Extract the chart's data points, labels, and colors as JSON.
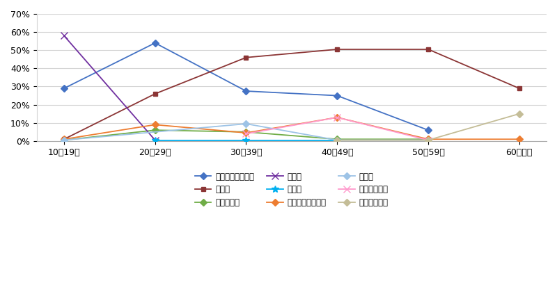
{
  "categories": [
    "10～19歳",
    "20～29歳",
    "30～39歳",
    "40～49歳",
    "50～59歳",
    "60歳以上"
  ],
  "series": [
    {
      "label": "就職・転職・転業",
      "values": [
        0.29,
        0.54,
        0.275,
        0.25,
        0.06,
        null
      ],
      "color": "#4472C4",
      "marker": "D",
      "markersize": 5
    },
    {
      "label": "転　勤",
      "values": [
        0.01,
        0.26,
        0.46,
        0.505,
        0.505,
        0.29
      ],
      "color": "#8B3535",
      "marker": "s",
      "markersize": 5
    },
    {
      "label": "退職・廃業",
      "values": [
        0.005,
        0.06,
        0.05,
        0.01,
        0.01,
        null
      ],
      "color": "#70AD47",
      "marker": "D",
      "markersize": 5
    },
    {
      "label": "就　学",
      "values": [
        0.58,
        0.005,
        null,
        null,
        null,
        null
      ],
      "color": "#7030A0",
      "marker": "x",
      "markersize": 7
    },
    {
      "label": "卒　業",
      "values": [
        null,
        0.005,
        0.005,
        0.005,
        null,
        null
      ],
      "color": "#00B0F0",
      "marker": "*",
      "markersize": 7
    },
    {
      "label": "結婚・離婚・縁組",
      "values": [
        0.01,
        0.09,
        0.045,
        0.13,
        0.01,
        0.01
      ],
      "color": "#ED7D31",
      "marker": "D",
      "markersize": 5
    },
    {
      "label": "住　宅",
      "values": [
        0.005,
        null,
        0.095,
        0.005,
        0.005,
        null
      ],
      "color": "#9DC3E6",
      "marker": "D",
      "markersize": 5
    },
    {
      "label": "交通の利便性",
      "values": [
        null,
        null,
        0.04,
        0.13,
        0.005,
        null
      ],
      "color": "#FF99CC",
      "marker": "x",
      "markersize": 7
    },
    {
      "label": "生活の利便性",
      "values": [
        null,
        null,
        null,
        0.005,
        0.005,
        0.15
      ],
      "color": "#C4BD97",
      "marker": "D",
      "markersize": 5
    }
  ],
  "ylim": [
    0.0,
    0.7
  ],
  "yticks": [
    0.0,
    0.1,
    0.2,
    0.3,
    0.4,
    0.5,
    0.6,
    0.7
  ],
  "ytick_labels": [
    "0%",
    "10%",
    "20%",
    "30%",
    "40%",
    "50%",
    "60%",
    "70%"
  ],
  "legend_order": [
    0,
    1,
    2,
    3,
    4,
    5,
    6,
    7,
    8
  ],
  "background_color": "#FFFFFF",
  "grid_color": "#D3D3D3"
}
